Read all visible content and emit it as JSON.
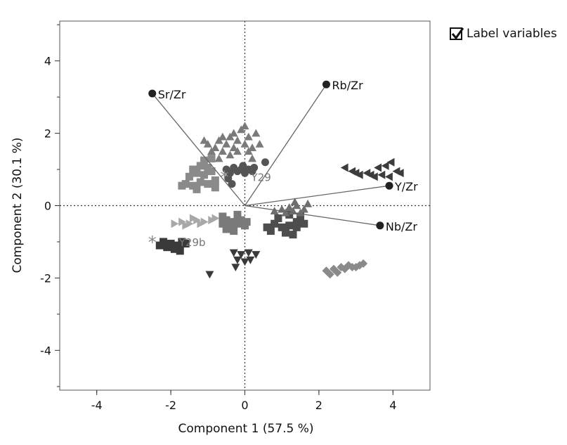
{
  "controls": {
    "label_variables": "Label variables",
    "label_variables_checked": true
  },
  "chart_data": {
    "type": "scatter",
    "xlabel": "Component 1  (57.5 %)",
    "ylabel": "Component 2  (30.1 %)",
    "xlim": [
      -5,
      5
    ],
    "ylim": [
      -5.1,
      5.1
    ],
    "xticks": [
      -4,
      -2,
      0,
      2,
      4
    ],
    "yticks": [
      -4,
      -2,
      0,
      2,
      4
    ],
    "zero_lines": true,
    "loadings": [
      {
        "label": "Sr/Zr",
        "x": -2.5,
        "y": 3.1
      },
      {
        "label": "Rb/Zr",
        "x": 2.2,
        "y": 3.35
      },
      {
        "label": "Y/Zr",
        "x": 3.9,
        "y": 0.55
      },
      {
        "label": "Nb/Zr",
        "x": 3.65,
        "y": -0.55
      }
    ],
    "annotations": [
      {
        "label": "Y29",
        "x": -0.55,
        "y": 0.8
      },
      {
        "label": "Y29b",
        "x": -2.5,
        "y": -1.0
      }
    ],
    "groups": [
      {
        "marker": "triangle-up",
        "color": "#7a7a7a",
        "points": [
          [
            -1.0,
            1.7
          ],
          [
            -0.8,
            1.6
          ],
          [
            -0.7,
            1.8
          ],
          [
            -0.6,
            1.5
          ],
          [
            -0.5,
            1.7
          ],
          [
            -0.4,
            1.9
          ],
          [
            -0.3,
            1.6
          ],
          [
            -0.2,
            1.8
          ],
          [
            -0.1,
            2.1
          ],
          [
            0.0,
            1.7
          ],
          [
            0.1,
            1.9
          ],
          [
            0.2,
            1.6
          ],
          [
            0.3,
            2.0
          ],
          [
            -0.9,
            1.5
          ],
          [
            -0.6,
            1.9
          ],
          [
            -0.4,
            1.4
          ],
          [
            -0.2,
            1.5
          ],
          [
            0.0,
            2.2
          ],
          [
            0.4,
            1.7
          ],
          [
            -1.1,
            1.8
          ],
          [
            -0.7,
            1.3
          ],
          [
            0.2,
            1.3
          ],
          [
            -0.3,
            2.0
          ],
          [
            0.1,
            1.5
          ]
        ]
      },
      {
        "marker": "circle",
        "color": "#555555",
        "points": [
          [
            -0.5,
            1.0
          ],
          [
            -0.4,
            0.9
          ],
          [
            -0.3,
            1.05
          ],
          [
            -0.2,
            0.95
          ],
          [
            -0.1,
            1.0
          ],
          [
            0.0,
            0.9
          ],
          [
            0.1,
            1.0
          ],
          [
            0.2,
            0.95
          ],
          [
            -0.45,
            0.75
          ],
          [
            -0.35,
            0.6
          ],
          [
            0.55,
            1.2
          ],
          [
            -0.05,
            1.1
          ],
          [
            0.25,
            1.05
          ]
        ]
      },
      {
        "marker": "square",
        "color": "#8a8a8a",
        "points": [
          [
            -1.6,
            0.6
          ],
          [
            -1.4,
            0.55
          ],
          [
            -1.2,
            0.65
          ],
          [
            -1.0,
            0.6
          ],
          [
            -0.8,
            0.7
          ],
          [
            -1.5,
            0.8
          ],
          [
            -1.3,
            0.9
          ],
          [
            -1.1,
            0.85
          ],
          [
            -0.9,
            0.95
          ],
          [
            -1.4,
            1.0
          ],
          [
            -1.2,
            1.1
          ],
          [
            -1.0,
            1.05
          ],
          [
            -1.1,
            1.25
          ],
          [
            -0.9,
            1.3
          ],
          [
            -1.7,
            0.55
          ],
          [
            -1.3,
            0.45
          ],
          [
            -0.8,
            0.5
          ]
        ]
      },
      {
        "marker": "triangle-left",
        "color": "#3c3c3c",
        "points": [
          [
            2.7,
            1.05
          ],
          [
            2.9,
            0.95
          ],
          [
            3.1,
            0.85
          ],
          [
            3.3,
            0.9
          ],
          [
            3.5,
            0.8
          ],
          [
            3.7,
            0.85
          ],
          [
            3.9,
            0.8
          ],
          [
            4.1,
            0.95
          ],
          [
            3.8,
            1.1
          ],
          [
            3.6,
            1.05
          ],
          [
            4.2,
            0.9
          ],
          [
            3.4,
            0.85
          ],
          [
            3.0,
            0.9
          ],
          [
            3.95,
            1.2
          ]
        ]
      },
      {
        "marker": "triangle-right",
        "color": "#a8a8a8",
        "points": [
          [
            -1.9,
            -0.5
          ],
          [
            -1.7,
            -0.45
          ],
          [
            -1.5,
            -0.5
          ],
          [
            -1.3,
            -0.4
          ],
          [
            -1.1,
            -0.45
          ],
          [
            -0.9,
            -0.4
          ],
          [
            -1.6,
            -0.55
          ],
          [
            -1.2,
            -0.5
          ],
          [
            -0.8,
            -0.35
          ],
          [
            -1.4,
            -0.35
          ]
        ]
      },
      {
        "marker": "square",
        "color": "#7a7a7a",
        "points": [
          [
            -0.6,
            -0.5
          ],
          [
            -0.5,
            -0.4
          ],
          [
            -0.4,
            -0.55
          ],
          [
            -0.3,
            -0.45
          ],
          [
            -0.2,
            -0.5
          ],
          [
            -0.1,
            -0.4
          ],
          [
            0.0,
            -0.55
          ],
          [
            -0.5,
            -0.65
          ],
          [
            -0.3,
            -0.7
          ],
          [
            -0.6,
            -0.3
          ],
          [
            -0.2,
            -0.25
          ],
          [
            0.05,
            -0.45
          ]
        ]
      },
      {
        "marker": "square",
        "color": "#4d4d4d",
        "points": [
          [
            0.6,
            -0.6
          ],
          [
            0.8,
            -0.5
          ],
          [
            1.0,
            -0.6
          ],
          [
            1.2,
            -0.55
          ],
          [
            1.4,
            -0.6
          ],
          [
            1.6,
            -0.5
          ],
          [
            0.7,
            -0.7
          ],
          [
            1.1,
            -0.75
          ],
          [
            1.3,
            -0.8
          ],
          [
            0.9,
            -0.35
          ],
          [
            1.5,
            -0.3
          ],
          [
            1.2,
            -0.25
          ],
          [
            1.4,
            -0.45
          ]
        ]
      },
      {
        "marker": "triangle-up",
        "color": "#6e6e6e",
        "points": [
          [
            1.0,
            -0.1
          ],
          [
            1.2,
            -0.05
          ],
          [
            1.4,
            0.0
          ],
          [
            1.6,
            -0.1
          ],
          [
            1.1,
            -0.2
          ],
          [
            1.3,
            -0.15
          ],
          [
            1.7,
            0.05
          ],
          [
            1.5,
            -0.2
          ],
          [
            0.8,
            -0.15
          ],
          [
            1.35,
            0.1
          ]
        ]
      },
      {
        "marker": "square",
        "color": "#3a3a3a",
        "points": [
          [
            -2.2,
            -1.0
          ],
          [
            -2.0,
            -1.05
          ],
          [
            -1.8,
            -1.1
          ],
          [
            -1.7,
            -1.0
          ],
          [
            -2.1,
            -1.15
          ],
          [
            -1.9,
            -1.2
          ],
          [
            -1.6,
            -1.05
          ],
          [
            -2.3,
            -1.1
          ],
          [
            -1.75,
            -1.25
          ]
        ]
      },
      {
        "marker": "triangle-down",
        "color": "#3a3a3a",
        "points": [
          [
            -0.3,
            -1.3
          ],
          [
            -0.1,
            -1.35
          ],
          [
            0.1,
            -1.3
          ],
          [
            0.3,
            -1.35
          ],
          [
            -0.2,
            -1.5
          ],
          [
            0.0,
            -1.55
          ],
          [
            -0.25,
            -1.7
          ],
          [
            0.15,
            -1.5
          ],
          [
            -0.95,
            -1.9
          ]
        ]
      },
      {
        "marker": "diamond",
        "color": "#8a8a8a",
        "points": [
          [
            2.2,
            -1.8
          ],
          [
            2.4,
            -1.75
          ],
          [
            2.6,
            -1.7
          ],
          [
            2.8,
            -1.65
          ],
          [
            3.0,
            -1.7
          ],
          [
            3.2,
            -1.6
          ],
          [
            2.3,
            -1.9
          ],
          [
            2.5,
            -1.85
          ],
          [
            2.7,
            -1.75
          ],
          [
            2.9,
            -1.7
          ],
          [
            3.1,
            -1.65
          ]
        ]
      }
    ]
  }
}
